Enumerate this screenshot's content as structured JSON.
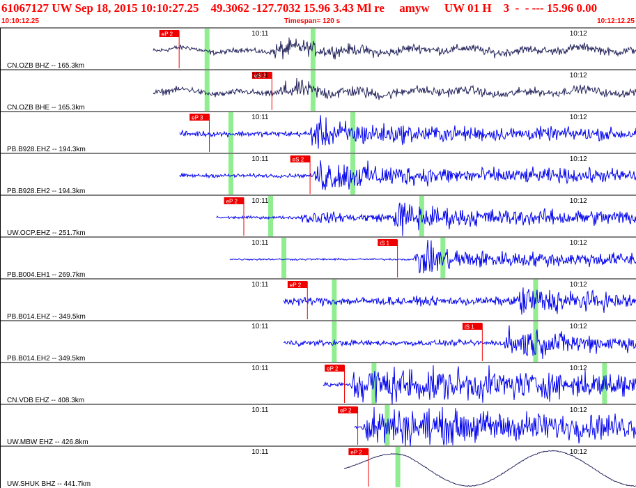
{
  "header": {
    "title": "61067127 UW Sep 18, 2015 10:10:27.25    49.3062 -127.7032 15.96 3.43 Ml re     amyw     UW 01 H    3  -  - --- 15.96 0.00",
    "start_time": "10:10:12.25",
    "timespan": "Timespan= 120 s",
    "end_time": "10:12:12.25"
  },
  "colors": {
    "trace_z": "#26265e",
    "trace": "#0000ee",
    "pick": "#ee0000",
    "marker": "#90ee90",
    "header": "#ff0000",
    "divider": "#000000"
  },
  "chart_data": {
    "type": "line",
    "title": "61067127 UW Sep 18, 2015 10:10:27.25    49.3062 -127.7032 15.96 3.43 Ml re     amyw     UW 01 H    3  -  - --- 15.96 0.00",
    "x_range_s": [
      0,
      120
    ],
    "time_ticks": [
      {
        "label": "10:11",
        "t": 48
      },
      {
        "label": "10:12",
        "t": 108
      }
    ],
    "traces": [
      {
        "label": "CN.OZB BHZ -- 165.3km",
        "start": 29,
        "style": "low",
        "pick": {
          "label": "eP 2",
          "t": 33.8
        },
        "markers": [
          39,
          59
        ],
        "events": [
          {
            "t": 51,
            "amp": 0.85,
            "dur": 9
          },
          {
            "t": 58,
            "amp": 0.5,
            "dur": 8
          }
        ],
        "base": 0.18
      },
      {
        "label": "CN.OZB BHE -- 165.3km",
        "start": 29,
        "style": "low",
        "pick": {
          "label": "eS 2",
          "t": 51.3
        },
        "markers": [
          39,
          59
        ],
        "events": [
          {
            "t": 52,
            "amp": 0.8,
            "dur": 12
          }
        ],
        "base": 0.22
      },
      {
        "label": "PB.B928.EHZ -- 194.3km",
        "start": 34,
        "style": "hf",
        "pick": {
          "label": "eP 3",
          "t": 39.5
        },
        "markers": [
          43.5,
          66.5
        ],
        "events": [
          {
            "t": 58,
            "amp": 0.75,
            "dur": 14
          }
        ],
        "base": 0.12
      },
      {
        "label": "PB.B928.EH2 -- 194.3km",
        "start": 34,
        "style": "hf",
        "pick": {
          "label": "eS 2",
          "t": 58.5
        },
        "markers": [
          43.5,
          66.5
        ],
        "events": [
          {
            "t": 59,
            "amp": 0.85,
            "dur": 12
          }
        ],
        "base": 0.08
      },
      {
        "label": "UW.OCP.EHZ -- 251.7km",
        "start": 41,
        "style": "hf",
        "pick": {
          "label": "eP 2",
          "t": 46
        },
        "markers": [
          51,
          79.5
        ],
        "events": [
          {
            "t": 56.5,
            "amp": 0.5,
            "dur": 3
          },
          {
            "t": 74,
            "amp": 0.95,
            "dur": 6
          }
        ],
        "base": 0.06
      },
      {
        "label": "PB.B004.EH1 -- 269.7km",
        "start": 43.5,
        "style": "hf",
        "pick": {
          "label": "iS 1",
          "t": 75
        },
        "markers": [
          53.5,
          83.5
        ],
        "events": [
          {
            "t": 78,
            "amp": 0.85,
            "dur": 7
          }
        ],
        "base": 0.04
      },
      {
        "label": "PB.B014.EHZ -- 349.5km",
        "start": 53.5,
        "style": "hf",
        "pick": {
          "label": "eP 2",
          "t": 58
        },
        "markers": [
          63,
          101
        ],
        "events": [
          {
            "t": 97,
            "amp": 0.8,
            "dur": 10
          }
        ],
        "base": 0.18
      },
      {
        "label": "PB.B014.EH2 -- 349.5km",
        "start": 53.5,
        "style": "hf",
        "pick": {
          "label": "iS 1",
          "t": 91
        },
        "markers": [
          63,
          101
        ],
        "events": [
          {
            "t": 95,
            "amp": 0.85,
            "dur": 10
          }
        ],
        "base": 0.12
      },
      {
        "label": "CN.VDB EHZ -- 408.3km",
        "start": 61,
        "style": "hf",
        "pick": {
          "label": "eP 2",
          "t": 65
        },
        "markers": [
          70.5,
          114
        ],
        "events": [
          {
            "t": 66,
            "amp": 0.9,
            "dur": 50
          }
        ],
        "base": 0.1
      },
      {
        "label": "UW.MBW EHZ -- 426.8km",
        "start": 67,
        "style": "hf",
        "pick": {
          "label": "eP 2",
          "t": 67.5
        },
        "markers": [
          73
        ],
        "events": [
          {
            "t": 68,
            "amp": 0.9,
            "dur": 50
          }
        ],
        "base": 0.06
      },
      {
        "label": "UW.SHUK BHZ -- 441.7km",
        "start": 65,
        "style": "swell",
        "pick": {
          "label": "eP 2",
          "t": 69.5
        },
        "markers": [
          75
        ],
        "events": [],
        "base": 0.0
      }
    ]
  }
}
